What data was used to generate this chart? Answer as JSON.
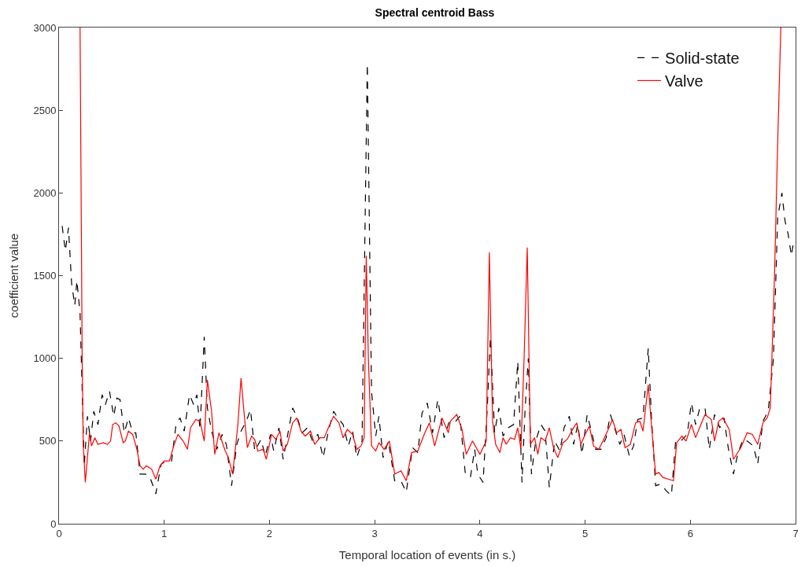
{
  "chart_data": {
    "type": "line",
    "title": "Spectral centroid Bass",
    "xlabel": "Temporal location of events (in s.)",
    "ylabel": "coefficient value",
    "xlim": [
      0,
      7
    ],
    "xticks": [
      0,
      1,
      2,
      3,
      4,
      5,
      6,
      7
    ],
    "ylim": [
      0,
      3000
    ],
    "yticks": [
      0,
      500,
      1000,
      1500,
      2000,
      2500,
      3000
    ],
    "grid": false,
    "legend": "top right",
    "series": [
      {
        "name": "Solid-state",
        "color": "#000000",
        "line_style": "dashed",
        "x": [
          0.03,
          0.06,
          0.09,
          0.12,
          0.15,
          0.17,
          0.2,
          0.24,
          0.27,
          0.3,
          0.33,
          0.37,
          0.41,
          0.44,
          0.48,
          0.52,
          0.55,
          0.58,
          0.62,
          0.66,
          0.7,
          0.73,
          0.77,
          0.82,
          0.86,
          0.92,
          0.97,
          1.02,
          1.07,
          1.11,
          1.15,
          1.19,
          1.24,
          1.28,
          1.31,
          1.34,
          1.38,
          1.41,
          1.45,
          1.5,
          1.55,
          1.59,
          1.64,
          1.69,
          1.73,
          1.78,
          1.82,
          1.86,
          1.92,
          1.96,
          2.01,
          2.04,
          2.09,
          2.13,
          2.18,
          2.22,
          2.26,
          2.31,
          2.36,
          2.41,
          2.46,
          2.51,
          2.56,
          2.61,
          2.65,
          2.7,
          2.75,
          2.79,
          2.83,
          2.88,
          2.93,
          2.97,
          3.01,
          3.04,
          3.08,
          3.13,
          3.19,
          3.25,
          3.3,
          3.36,
          3.41,
          3.45,
          3.5,
          3.55,
          3.6,
          3.66,
          3.71,
          3.77,
          3.81,
          3.86,
          3.91,
          3.95,
          3.98,
          4.03,
          4.07,
          4.1,
          4.14,
          4.18,
          4.22,
          4.27,
          4.32,
          4.36,
          4.4,
          4.43,
          4.46,
          4.49,
          4.53,
          4.58,
          4.62,
          4.66,
          4.71,
          4.76,
          4.8,
          4.85,
          4.89,
          4.93,
          4.97,
          5.02,
          5.06,
          5.1,
          5.15,
          5.2,
          5.24,
          5.28,
          5.33,
          5.37,
          5.42,
          5.46,
          5.5,
          5.55,
          5.6,
          5.63,
          5.67,
          5.72,
          5.77,
          5.82,
          5.86,
          5.91,
          5.97,
          6.01,
          6.05,
          6.09,
          6.14,
          6.18,
          6.23,
          6.28,
          6.32,
          6.36,
          6.41,
          6.45,
          6.5,
          6.54,
          6.6,
          6.64,
          6.69,
          6.74,
          6.79,
          6.83,
          6.87,
          6.9,
          6.93,
          6.96,
          6.98
        ],
        "values": [
          1800,
          1650,
          1790,
          1450,
          1320,
          1470,
          1270,
          350,
          650,
          500,
          680,
          600,
          780,
          720,
          800,
          650,
          760,
          750,
          550,
          640,
          550,
          550,
          300,
          300,
          290,
          180,
          360,
          380,
          380,
          590,
          640,
          560,
          780,
          720,
          780,
          570,
          1130,
          700,
          560,
          450,
          540,
          480,
          230,
          480,
          560,
          620,
          690,
          440,
          510,
          410,
          540,
          440,
          580,
          390,
          560,
          700,
          650,
          550,
          580,
          500,
          540,
          400,
          560,
          680,
          640,
          600,
          470,
          560,
          400,
          500,
          2780,
          800,
          530,
          650,
          400,
          500,
          260,
          260,
          190,
          460,
          430,
          670,
          730,
          550,
          750,
          520,
          620,
          620,
          650,
          310,
          280,
          450,
          300,
          250,
          700,
          1130,
          550,
          700,
          530,
          580,
          600,
          980,
          250,
          700,
          1000,
          300,
          500,
          600,
          560,
          220,
          500,
          440,
          580,
          650,
          480,
          600,
          420,
          660,
          560,
          450,
          450,
          520,
          660,
          580,
          480,
          540,
          410,
          470,
          630,
          640,
          1060,
          650,
          230,
          240,
          200,
          170,
          500,
          500,
          540,
          730,
          600,
          700,
          700,
          450,
          660,
          580,
          640,
          460,
          300,
          420,
          510,
          500,
          470,
          360,
          620,
          680,
          1000,
          1850,
          2000,
          1830,
          1750,
          1620,
          1700
        ]
      },
      {
        "name": "Valve",
        "color": "#ff0000",
        "line_style": "solid",
        "x": [
          0.2,
          0.22,
          0.23,
          0.25,
          0.29,
          0.31,
          0.34,
          0.37,
          0.42,
          0.46,
          0.49,
          0.51,
          0.54,
          0.57,
          0.61,
          0.63,
          0.66,
          0.7,
          0.74,
          0.77,
          0.8,
          0.83,
          0.88,
          0.92,
          0.96,
          1.0,
          1.05,
          1.09,
          1.13,
          1.18,
          1.22,
          1.25,
          1.3,
          1.34,
          1.38,
          1.41,
          1.45,
          1.48,
          1.52,
          1.58,
          1.61,
          1.65,
          1.7,
          1.73,
          1.76,
          1.79,
          1.83,
          1.86,
          1.89,
          1.94,
          1.97,
          2.02,
          2.06,
          2.1,
          2.13,
          2.17,
          2.22,
          2.26,
          2.3,
          2.34,
          2.39,
          2.43,
          2.48,
          2.52,
          2.56,
          2.61,
          2.66,
          2.7,
          2.74,
          2.79,
          2.83,
          2.87,
          2.9,
          2.92,
          2.94,
          2.97,
          3.01,
          3.04,
          3.09,
          3.14,
          3.19,
          3.25,
          3.3,
          3.35,
          3.41,
          3.47,
          3.52,
          3.57,
          3.64,
          3.7,
          3.72,
          3.78,
          3.83,
          3.87,
          3.93,
          4.0,
          4.06,
          4.09,
          4.12,
          4.15,
          4.19,
          4.22,
          4.25,
          4.29,
          4.33,
          4.36,
          4.39,
          4.42,
          4.45,
          4.48,
          4.52,
          4.55,
          4.58,
          4.62,
          4.66,
          4.7,
          4.74,
          4.79,
          4.83,
          4.88,
          4.92,
          4.96,
          5.0,
          5.04,
          5.08,
          5.13,
          5.17,
          5.22,
          5.26,
          5.3,
          5.34,
          5.38,
          5.43,
          5.48,
          5.52,
          5.55,
          5.6,
          5.63,
          5.67,
          5.7,
          5.74,
          5.79,
          5.84,
          5.87,
          5.92,
          5.96,
          6.01,
          6.05,
          6.1,
          6.14,
          6.2,
          6.23,
          6.27,
          6.31,
          6.37,
          6.41,
          6.48,
          6.54,
          6.59,
          6.64,
          6.69,
          6.73,
          6.76,
          6.8,
          6.83,
          6.86
        ],
        "values": [
          3000,
          1000,
          480,
          250,
          550,
          470,
          520,
          480,
          490,
          480,
          500,
          600,
          610,
          590,
          490,
          500,
          560,
          540,
          450,
          350,
          330,
          350,
          330,
          270,
          350,
          380,
          380,
          470,
          540,
          500,
          450,
          580,
          630,
          620,
          500,
          870,
          680,
          420,
          550,
          440,
          400,
          300,
          600,
          880,
          660,
          460,
          530,
          510,
          440,
          450,
          390,
          540,
          510,
          560,
          440,
          480,
          610,
          640,
          560,
          530,
          560,
          480,
          520,
          520,
          580,
          650,
          610,
          520,
          570,
          540,
          450,
          470,
          520,
          1620,
          1000,
          470,
          440,
          490,
          450,
          500,
          300,
          320,
          260,
          430,
          440,
          540,
          610,
          470,
          640,
          550,
          620,
          660,
          570,
          420,
          500,
          420,
          500,
          1640,
          620,
          480,
          430,
          520,
          480,
          520,
          510,
          580,
          450,
          1000,
          1670,
          480,
          520,
          420,
          520,
          500,
          580,
          460,
          400,
          490,
          510,
          570,
          610,
          480,
          540,
          590,
          470,
          450,
          500,
          570,
          630,
          550,
          570,
          460,
          480,
          610,
          620,
          560,
          840,
          600,
          300,
          310,
          280,
          270,
          260,
          490,
          530,
          500,
          600,
          520,
          600,
          660,
          630,
          500,
          620,
          640,
          570,
          390,
          460,
          550,
          540,
          480,
          610,
          640,
          700,
          1500,
          2300,
          3000
        ]
      }
    ]
  }
}
